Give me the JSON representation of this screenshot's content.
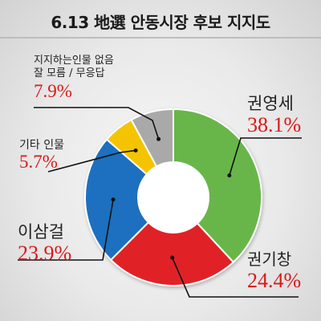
{
  "title": "6.13 地選 안동시장 후보 지지도",
  "chart_data": {
    "type": "pie",
    "title": "6.13 地選 안동시장 후보 지지도",
    "series": [
      {
        "categories": [
          "권영세",
          "권기창",
          "이삼걸",
          "기타 인물",
          "지지하는인물 없음 잘 모름 / 무응답"
        ],
        "values": [
          38.1,
          24.4,
          23.9,
          5.7,
          7.9
        ],
        "colors": [
          "#67b649",
          "#e02427",
          "#1f6fbf",
          "#f5c400",
          "#a9a9a9"
        ]
      }
    ]
  },
  "labels": {
    "kwon_ys_name": "권영세",
    "kwon_ys_pct": "38.1%",
    "kwon_kc_name": "권기창",
    "kwon_kc_pct": "24.4%",
    "lee_name": "이삼걸",
    "lee_pct": "23.9%",
    "other_name": "기타 인물",
    "other_pct": "5.7%",
    "none_line1": "지지하는인물 없음",
    "none_line2": "잘 모름 / 무응답",
    "none_pct": "7.9%"
  }
}
